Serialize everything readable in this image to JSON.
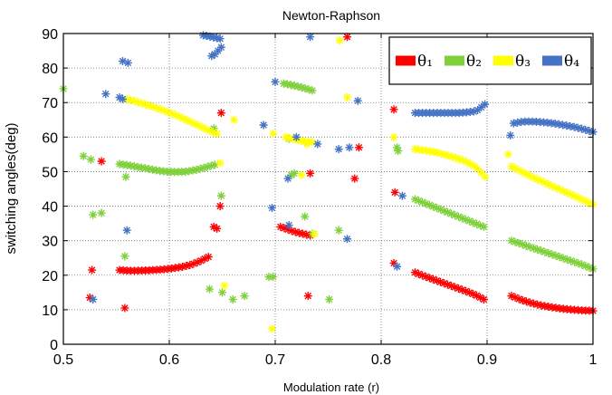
{
  "chart_data": {
    "type": "scatter",
    "title": "Newton-Raphson",
    "xlabel": "Modulation rate (r)",
    "ylabel": "switching angles(deg)",
    "xlim": [
      0.5,
      1.0
    ],
    "ylim": [
      0,
      90
    ],
    "xticks": [
      "0.5",
      "0.6",
      "0.7",
      "0.8",
      "0.9",
      "1"
    ],
    "yticks": [
      "0",
      "10",
      "20",
      "30",
      "40",
      "50",
      "60",
      "70",
      "80",
      "90"
    ],
    "grid": true,
    "legend_position": "top-right",
    "marker": "*",
    "series": [
      {
        "name": "θ₁",
        "color": "#ff0000",
        "segments": [
          {
            "x0": 0.553,
            "x1": 0.637,
            "y": [
              21.5,
              21.3,
              21.3,
              21.4,
              21.5,
              21.7,
              22.0,
              22.4,
              23.0,
              24.0,
              25.3
            ]
          },
          {
            "x0": 0.705,
            "x1": 0.733,
            "y": [
              34.0,
              32.5,
              31.5
            ]
          },
          {
            "x0": 0.832,
            "x1": 0.897,
            "y": [
              20.8,
              19.8,
              18.9,
              18.0,
              17.1,
              16.2,
              15.3,
              14.3,
              13.0
            ]
          },
          {
            "x0": 0.923,
            "x1": 1.0,
            "y": [
              14.0,
              12.8,
              11.9,
              11.2,
              10.7,
              10.3,
              10.0,
              9.8,
              9.7
            ]
          }
        ],
        "points": [
          [
            0.525,
            13.5
          ],
          [
            0.527,
            21.5
          ],
          [
            0.536,
            53.0
          ],
          [
            0.558,
            10.5
          ],
          [
            0.642,
            34.0
          ],
          [
            0.645,
            33.5
          ],
          [
            0.648,
            40.0
          ],
          [
            0.649,
            67.0
          ],
          [
            0.731,
            14.0
          ],
          [
            0.733,
            49.5
          ],
          [
            0.768,
            89.0
          ],
          [
            0.775,
            48.0
          ],
          [
            0.779,
            57.0
          ],
          [
            0.812,
            23.5
          ],
          [
            0.812,
            68.0
          ],
          [
            0.813,
            44.0
          ]
        ]
      },
      {
        "name": "θ₂",
        "color": "#7fd13b",
        "segments": [
          {
            "x0": 0.553,
            "x1": 0.643,
            "y": [
              52.2,
              51.8,
              51.3,
              50.8,
              50.3,
              50.0,
              49.9,
              50.0,
              50.5,
              51.2,
              52.0
            ]
          },
          {
            "x0": 0.708,
            "x1": 0.735,
            "y": [
              75.5,
              75.0,
              74.3,
              73.5
            ]
          },
          {
            "x0": 0.832,
            "x1": 0.897,
            "y": [
              42.0,
              41.0,
              40.0,
              39.0,
              38.0,
              37.0,
              36.0,
              35.0,
              34.0
            ]
          },
          {
            "x0": 0.923,
            "x1": 1.0,
            "y": [
              30.0,
              29.0,
              28.0,
              27.0,
              26.0,
              25.0,
              24.0,
              23.0,
              21.8
            ]
          }
        ],
        "points": [
          [
            0.5,
            74.0
          ],
          [
            0.519,
            54.5
          ],
          [
            0.526,
            53.5
          ],
          [
            0.528,
            37.5
          ],
          [
            0.536,
            38.0
          ],
          [
            0.558,
            25.5
          ],
          [
            0.559,
            48.5
          ],
          [
            0.638,
            16.0
          ],
          [
            0.642,
            62.5
          ],
          [
            0.649,
            43.0
          ],
          [
            0.65,
            15.0
          ],
          [
            0.66,
            13.0
          ],
          [
            0.671,
            14.0
          ],
          [
            0.694,
            19.5
          ],
          [
            0.698,
            19.5
          ],
          [
            0.713,
            59.5
          ],
          [
            0.715,
            49.0
          ],
          [
            0.718,
            49.5
          ],
          [
            0.728,
            37.0
          ],
          [
            0.735,
            32.0
          ],
          [
            0.751,
            13.0
          ],
          [
            0.76,
            33.0
          ],
          [
            0.815,
            57.0
          ],
          [
            0.816,
            56.0
          ]
        ]
      },
      {
        "name": "θ₃",
        "color": "#ffff00",
        "segments": [
          {
            "x0": 0.56,
            "x1": 0.645,
            "y": [
              71.0,
              70.3,
              69.5,
              68.7,
              67.8,
              66.8,
              65.7,
              64.5,
              63.3,
              62.0,
              61.0
            ]
          },
          {
            "x0": 0.71,
            "x1": 0.735,
            "y": [
              60.0,
              59.0,
              58.5
            ]
          },
          {
            "x0": 0.832,
            "x1": 0.898,
            "y": [
              56.5,
              56.2,
              55.8,
              55.2,
              54.5,
              53.7,
              52.7,
              51.3,
              48.5
            ]
          },
          {
            "x0": 0.923,
            "x1": 1.0,
            "y": [
              51.5,
              50.0,
              48.5,
              47.2,
              45.8,
              44.5,
              43.2,
              41.8,
              40.5
            ]
          }
        ],
        "points": [
          [
            0.648,
            52.5
          ],
          [
            0.652,
            17.0
          ],
          [
            0.661,
            65.0
          ],
          [
            0.697,
            4.5
          ],
          [
            0.698,
            61.0
          ],
          [
            0.725,
            49.0
          ],
          [
            0.73,
            58.0
          ],
          [
            0.737,
            32.0
          ],
          [
            0.761,
            88.0
          ],
          [
            0.768,
            71.5
          ],
          [
            0.812,
            60.0
          ],
          [
            0.92,
            55.0
          ]
        ]
      },
      {
        "name": "θ₄",
        "color": "#4472c4",
        "segments": [
          {
            "x0": 0.632,
            "x1": 0.648,
            "y": [
              89.5,
              89.0,
              88.5
            ]
          },
          {
            "x0": 0.64,
            "x1": 0.649,
            "y": [
              83.5,
              84.0,
              85.0,
              86.0
            ]
          },
          {
            "x0": 0.832,
            "x1": 0.898,
            "y": [
              67.0,
              67.0,
              67.0,
              67.0,
              67.0,
              67.0,
              67.2,
              67.5,
              69.5
            ]
          },
          {
            "x0": 0.925,
            "x1": 1.0,
            "y": [
              64.0,
              64.5,
              64.5,
              64.3,
              64.0,
              63.5,
              63.0,
              62.3,
              61.5
            ]
          }
        ],
        "points": [
          [
            0.528,
            13.0
          ],
          [
            0.54,
            72.5
          ],
          [
            0.553,
            71.5
          ],
          [
            0.556,
            71.0
          ],
          [
            0.556,
            82.0
          ],
          [
            0.56,
            33.0
          ],
          [
            0.561,
            81.5
          ],
          [
            0.689,
            63.5
          ],
          [
            0.697,
            39.5
          ],
          [
            0.7,
            76.0
          ],
          [
            0.712,
            48.0
          ],
          [
            0.713,
            34.5
          ],
          [
            0.72,
            60.0
          ],
          [
            0.733,
            89.0
          ],
          [
            0.74,
            58.0
          ],
          [
            0.76,
            56.5
          ],
          [
            0.768,
            30.5
          ],
          [
            0.77,
            57.0
          ],
          [
            0.778,
            70.5
          ],
          [
            0.815,
            22.5
          ],
          [
            0.82,
            43.0
          ],
          [
            0.922,
            60.5
          ]
        ]
      }
    ]
  }
}
